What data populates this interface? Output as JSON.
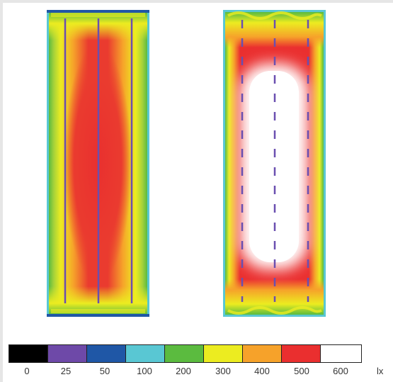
{
  "legend": {
    "unit": "lx",
    "levels": [
      {
        "label": "0",
        "color": "#000000"
      },
      {
        "label": "25",
        "color": "#6e49a8"
      },
      {
        "label": "50",
        "color": "#1f57a6"
      },
      {
        "label": "100",
        "color": "#59c7d3"
      },
      {
        "label": "200",
        "color": "#5bbb3f"
      },
      {
        "label": "300",
        "color": "#ecec20"
      },
      {
        "label": "400",
        "color": "#f6a22a"
      },
      {
        "label": "500",
        "color": "#ea2f2f"
      },
      {
        "label": "600",
        "color": "#ffffff"
      }
    ]
  },
  "colors": {
    "luminaire_line": "#6a4fb0"
  }
}
